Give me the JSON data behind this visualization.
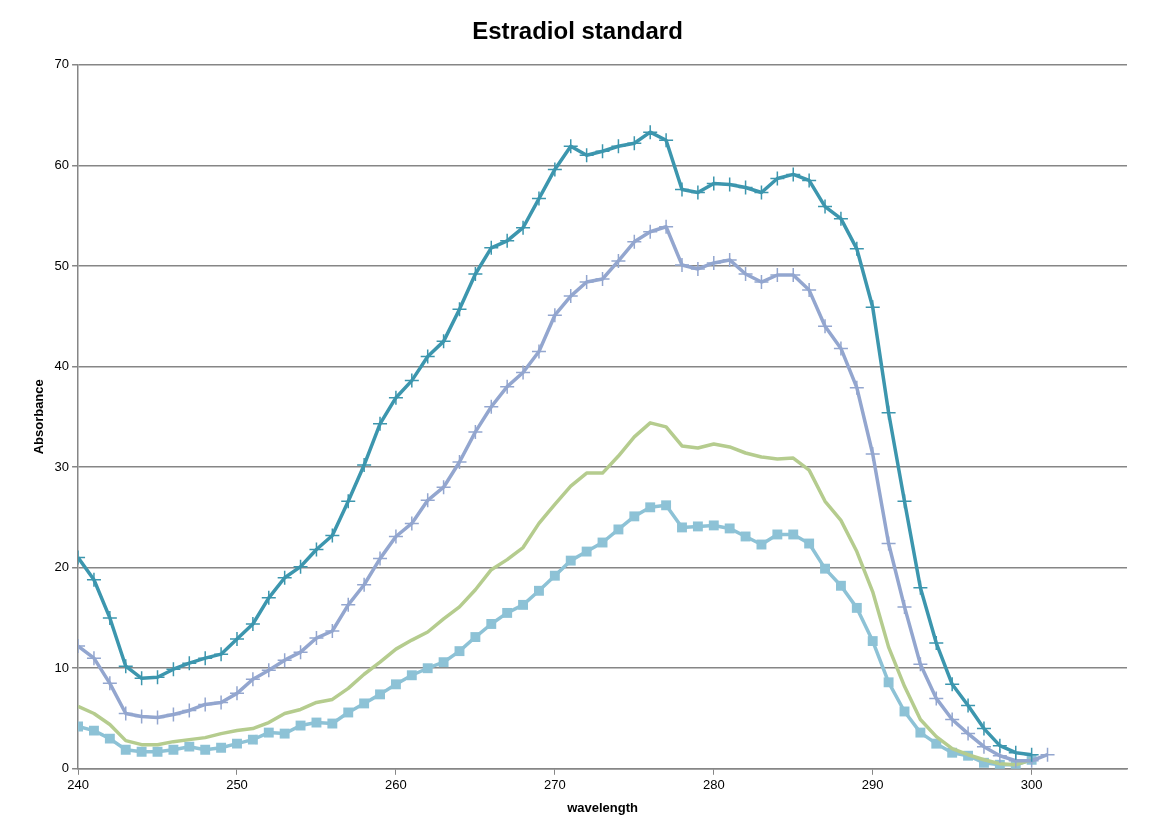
{
  "chart_data": {
    "type": "line",
    "title": "Estradiol standard",
    "xlabel": "wavelength",
    "ylabel": "Absorbance",
    "x": [
      240,
      241,
      242,
      243,
      244,
      245,
      246,
      247,
      248,
      249,
      250,
      251,
      252,
      253,
      254,
      255,
      256,
      257,
      258,
      259,
      260,
      261,
      262,
      263,
      264,
      265,
      266,
      267,
      268,
      269,
      270,
      271,
      272,
      273,
      274,
      275,
      276,
      277,
      278,
      279,
      280,
      281,
      282,
      283,
      284,
      285,
      286,
      287,
      288,
      289,
      290,
      291,
      292,
      293,
      294,
      295,
      296,
      297,
      298,
      299,
      300
    ],
    "xlim": [
      240,
      306
    ],
    "xticks": [
      240,
      250,
      260,
      270,
      280,
      290,
      300
    ],
    "ylim": [
      0,
      70
    ],
    "yticks": [
      0,
      10,
      20,
      30,
      40,
      50,
      60,
      70
    ],
    "grid": "y",
    "legend": false,
    "series": [
      {
        "color": "#3c96ae",
        "marker": "cross",
        "values": [
          21.0,
          18.8,
          15.0,
          10.2,
          9.0,
          9.1,
          9.9,
          10.5,
          11.0,
          11.4,
          12.9,
          14.4,
          17.0,
          19.0,
          20.1,
          21.8,
          23.2,
          26.6,
          30.2,
          34.3,
          36.9,
          38.6,
          41.0,
          42.5,
          45.7,
          49.2,
          51.8,
          52.5,
          53.8,
          56.7,
          59.6,
          61.9,
          61.0,
          61.4,
          61.9,
          62.2,
          63.3,
          62.5,
          57.6,
          57.3,
          58.2,
          58.1,
          57.8,
          57.3,
          58.7,
          59.1,
          58.5,
          55.9,
          54.7,
          51.7,
          45.9,
          35.4,
          26.6,
          18.0,
          12.5,
          8.4,
          6.3,
          4.0,
          2.3,
          1.6,
          1.4
        ]
      },
      {
        "color": "#93a6cf",
        "marker": "cross",
        "x": [
          240,
          241,
          242,
          243,
          244,
          245,
          246,
          247,
          248,
          249,
          250,
          251,
          252,
          253,
          254,
          255,
          256,
          257,
          258,
          259,
          260,
          261,
          262,
          263,
          264,
          265,
          266,
          267,
          268,
          269,
          270,
          271,
          272,
          273,
          274,
          275,
          276,
          277,
          278,
          279,
          280,
          281,
          282,
          283,
          284,
          285,
          286,
          287,
          288,
          289,
          290,
          291,
          292,
          293,
          294,
          295,
          296,
          297,
          298,
          299,
          300,
          301
        ],
        "values": [
          12.2,
          11.0,
          8.5,
          5.5,
          5.2,
          5.1,
          5.4,
          5.8,
          6.4,
          6.6,
          7.5,
          8.9,
          9.8,
          10.8,
          11.6,
          13.0,
          13.7,
          16.3,
          18.3,
          20.9,
          23.1,
          24.4,
          26.7,
          28.0,
          30.5,
          33.5,
          36.0,
          38.0,
          39.4,
          41.5,
          45.1,
          47.0,
          48.4,
          48.7,
          50.5,
          52.4,
          53.4,
          53.9,
          50.1,
          49.7,
          50.3,
          50.6,
          49.2,
          48.4,
          49.1,
          49.1,
          47.6,
          44.0,
          41.8,
          37.9,
          31.3,
          22.4,
          16.1,
          10.4,
          7.0,
          4.9,
          3.5,
          2.2,
          1.3,
          0.8,
          0.8,
          1.4
        ]
      },
      {
        "color": "#b5cc8e",
        "marker": "none",
        "values": [
          6.2,
          5.5,
          4.4,
          2.8,
          2.4,
          2.4,
          2.7,
          2.9,
          3.1,
          3.5,
          3.8,
          4.0,
          4.6,
          5.5,
          5.9,
          6.6,
          6.9,
          8.0,
          9.4,
          10.6,
          11.9,
          12.8,
          13.6,
          14.9,
          16.1,
          17.8,
          19.8,
          20.8,
          22.0,
          24.4,
          26.3,
          28.1,
          29.4,
          29.4,
          31.1,
          33.0,
          34.4,
          34.0,
          32.1,
          31.9,
          32.3,
          32.0,
          31.4,
          31.0,
          30.8,
          30.9,
          29.7,
          26.6,
          24.7,
          21.6,
          17.6,
          12.1,
          8.2,
          4.9,
          3.2,
          2.0,
          1.4,
          0.9,
          0.5,
          0.4,
          0.9
        ]
      },
      {
        "color": "#8dc2d6",
        "marker": "square",
        "values": [
          4.2,
          3.8,
          3.0,
          1.9,
          1.7,
          1.7,
          1.9,
          2.2,
          1.9,
          2.1,
          2.5,
          2.9,
          3.6,
          3.5,
          4.3,
          4.6,
          4.5,
          5.6,
          6.5,
          7.4,
          8.4,
          9.3,
          10.0,
          10.6,
          11.7,
          13.1,
          14.4,
          15.5,
          16.3,
          17.7,
          19.2,
          20.7,
          21.6,
          22.5,
          23.8,
          25.1,
          26.0,
          26.2,
          24.0,
          24.1,
          24.2,
          23.9,
          23.1,
          22.3,
          23.3,
          23.3,
          22.4,
          19.9,
          18.2,
          16.0,
          12.7,
          8.6,
          5.7,
          3.6,
          2.5,
          1.6,
          1.3,
          0.6,
          0.4,
          0.4,
          0.9
        ]
      }
    ]
  }
}
